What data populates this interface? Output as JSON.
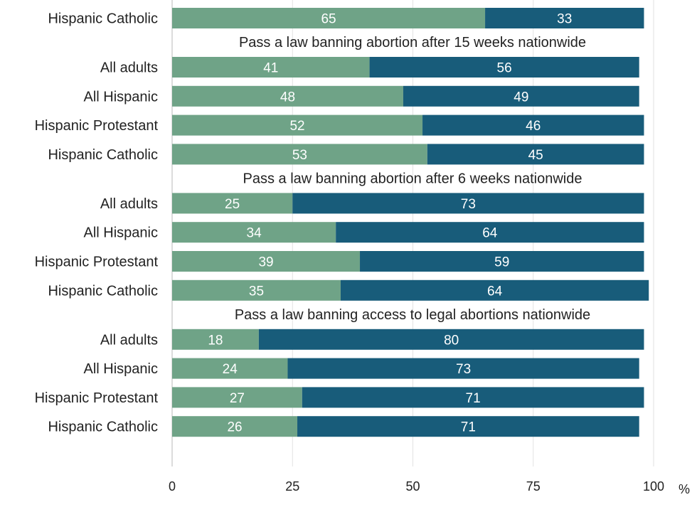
{
  "chart_data": {
    "type": "bar",
    "orientation": "horizontal",
    "stacked": true,
    "unit": "%",
    "xlim": [
      0,
      100
    ],
    "xticks": [
      0,
      25,
      50,
      75,
      100
    ],
    "grid": "vertical",
    "colors": {
      "favor": "#6fa387",
      "oppose": "#185c7a"
    },
    "groups": [
      {
        "title": "",
        "rows": [
          {
            "label": "Hispanic Catholic",
            "values": [
              65,
              33
            ]
          }
        ]
      },
      {
        "title": "Pass a law banning abortion after 15 weeks nationwide",
        "rows": [
          {
            "label": "All adults",
            "values": [
              41,
              56
            ]
          },
          {
            "label": "All Hispanic",
            "values": [
              48,
              49
            ]
          },
          {
            "label": "Hispanic Protestant",
            "values": [
              52,
              46
            ]
          },
          {
            "label": "Hispanic Catholic",
            "values": [
              53,
              45
            ]
          }
        ]
      },
      {
        "title": "Pass a law banning abortion after 6 weeks nationwide",
        "rows": [
          {
            "label": "All adults",
            "values": [
              25,
              73
            ]
          },
          {
            "label": "All Hispanic",
            "values": [
              34,
              64
            ]
          },
          {
            "label": "Hispanic Protestant",
            "values": [
              39,
              59
            ]
          },
          {
            "label": "Hispanic Catholic",
            "values": [
              35,
              64
            ]
          }
        ]
      },
      {
        "title": "Pass a law banning access to legal abortions nationwide",
        "rows": [
          {
            "label": "All adults",
            "values": [
              18,
              80
            ]
          },
          {
            "label": "All Hispanic",
            "values": [
              24,
              73
            ]
          },
          {
            "label": "Hispanic Protestant",
            "values": [
              27,
              71
            ]
          },
          {
            "label": "Hispanic Catholic",
            "values": [
              26,
              71
            ]
          }
        ]
      }
    ]
  }
}
